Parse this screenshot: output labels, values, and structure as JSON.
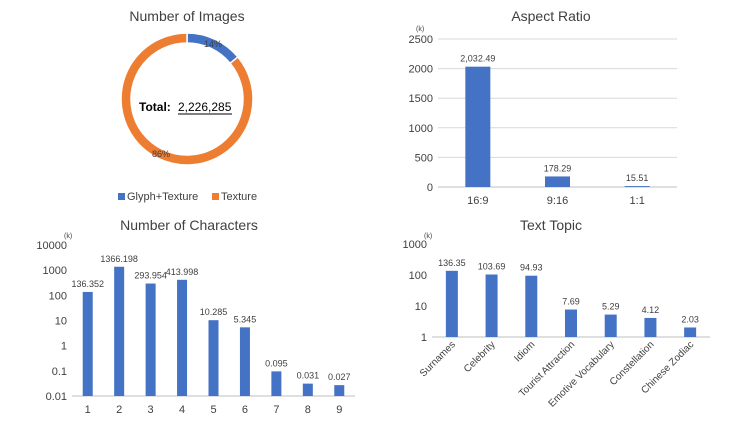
{
  "chart_data": [
    {
      "type": "pie",
      "title": "Number of Images",
      "center_label": "Total:",
      "center_value": "2,226,285",
      "slices": [
        {
          "name": "Glyph+Texture",
          "value": 14,
          "label": "14%",
          "color": "#4472C4"
        },
        {
          "name": "Texture",
          "value": 86,
          "label": "86%",
          "color": "#ED7D31"
        }
      ]
    },
    {
      "type": "bar",
      "title": "Aspect Ratio",
      "unit": "(k)",
      "categories": [
        "16:9",
        "9:16",
        "1:1"
      ],
      "values": [
        2032.49,
        178.29,
        15.51
      ],
      "value_labels": [
        "2,032.49",
        "178.29",
        "15.51"
      ],
      "yticks": [
        "0",
        "500",
        "1000",
        "1500",
        "2000",
        "2500"
      ],
      "ylim": [
        0,
        2500
      ],
      "grid": true,
      "color": "#4472C4"
    },
    {
      "type": "bar",
      "title": "Number of Characters",
      "unit": "(k)",
      "scale": "log",
      "categories": [
        "1",
        "2",
        "3",
        "4",
        "5",
        "6",
        "7",
        "8",
        "9"
      ],
      "values": [
        136.352,
        1366.198,
        293.954,
        413.998,
        10.285,
        5.345,
        0.095,
        0.031,
        0.027
      ],
      "value_labels": [
        "136.352",
        "1366.198",
        "293.954",
        "413.998",
        "10.285",
        "5.345",
        "0.095",
        "0.031",
        "0.027"
      ],
      "yticks": [
        "0.01",
        "0.1",
        "1",
        "10",
        "100",
        "1000",
        "10000"
      ],
      "ylim": [
        0.01,
        10000
      ],
      "grid": false,
      "color": "#4472C4"
    },
    {
      "type": "bar",
      "title": "Text Topic",
      "unit": "(k)",
      "scale": "log",
      "categories": [
        "Surnames",
        "Celebrity",
        "Idiom",
        "Tourist Attraction",
        "Emotive Vocabulary",
        "Constellation",
        "Chinese Zodiac"
      ],
      "values": [
        136.35,
        103.69,
        94.93,
        7.69,
        5.29,
        4.12,
        2.03
      ],
      "value_labels": [
        "136.35",
        "103.69",
        "94.93",
        "7.69",
        "5.29",
        "4.12",
        "2.03"
      ],
      "yticks": [
        "1",
        "10",
        "100",
        "1000"
      ],
      "ylim": [
        1,
        1000
      ],
      "grid": false,
      "color": "#4472C4"
    }
  ]
}
